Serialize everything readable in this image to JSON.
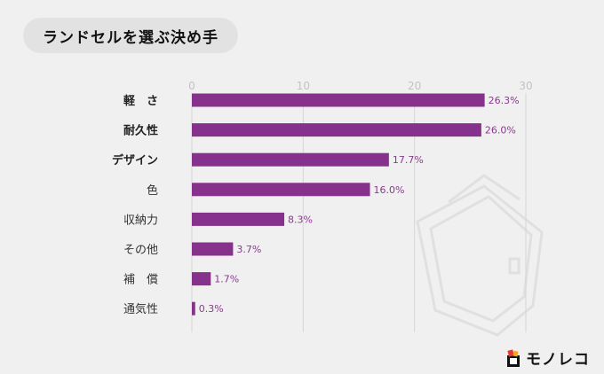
{
  "title": "ランドセルを選ぶ決め手",
  "logo_text": "モノレコ",
  "colors": {
    "bar": "#86318b",
    "value_text": "#8b3a8f",
    "grid": "#d6d6d6",
    "background": "#f0f0f0"
  },
  "chart_data": {
    "type": "bar",
    "orientation": "horizontal",
    "title": "ランドセルを選ぶ決め手",
    "categories": [
      "軽　さ",
      "耐久性",
      "デザイン",
      "色",
      "収納力",
      "その他",
      "補　償",
      "通気性"
    ],
    "values": [
      26.3,
      26.0,
      17.7,
      16.0,
      8.3,
      3.7,
      1.7,
      0.3
    ],
    "value_labels": [
      "26.3%",
      "26.0%",
      "17.7%",
      "16.0%",
      "8.3%",
      "3.7%",
      "1.7%",
      "0.3%"
    ],
    "bold_categories": [
      true,
      true,
      true,
      false,
      false,
      false,
      false,
      false
    ],
    "xlim": [
      0,
      30
    ],
    "xticks": [
      0,
      10,
      20,
      30
    ],
    "xaxis_position": "top",
    "grid": true,
    "legend": "none"
  }
}
